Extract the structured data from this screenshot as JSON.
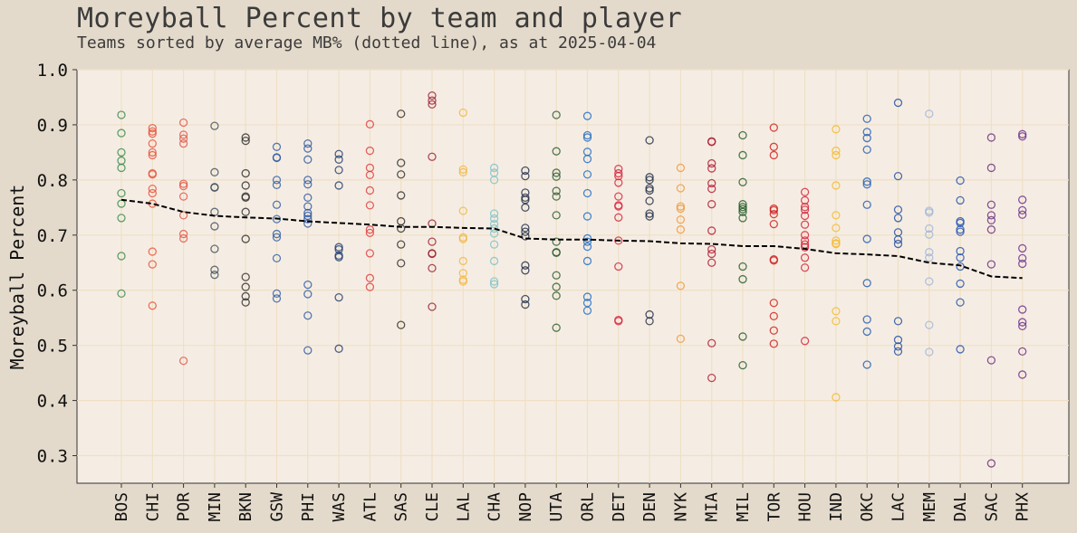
{
  "chart_data": {
    "type": "scatter",
    "title": "Moreyball Percent by team and player",
    "subtitle": "Teams sorted by average MB% (dotted line), as at 2025-04-04",
    "xlabel": "",
    "ylabel": "Moreyball Percent",
    "ylim": [
      0.25,
      1.0
    ],
    "yticks": [
      "0.3",
      "0.4",
      "0.5",
      "0.6",
      "0.7",
      "0.8",
      "0.9",
      "1.0"
    ],
    "grid": true,
    "categories": [
      "BOS",
      "CHI",
      "POR",
      "MIN",
      "BKN",
      "GSW",
      "PHI",
      "WAS",
      "ATL",
      "SAS",
      "CLE",
      "LAL",
      "CHA",
      "NOP",
      "UTA",
      "ORL",
      "DET",
      "DEN",
      "NYK",
      "MIA",
      "MIL",
      "TOR",
      "HOU",
      "IND",
      "OKC",
      "LAC",
      "MEM",
      "DAL",
      "SAC",
      "PHX"
    ],
    "colors": [
      "#3a8a48",
      "#e8503a",
      "#e05545",
      "#3d4f5e",
      "#2b2b2b",
      "#2c5aa8",
      "#2a55a0",
      "#1e3a6e",
      "#e03a3e",
      "#2b2b2b",
      "#9a1e35",
      "#f4b63e",
      "#7cc0c8",
      "#1e2a45",
      "#2a5a2e",
      "#1e6ac0",
      "#d8203c",
      "#1e2a45",
      "#f0963a",
      "#b01830",
      "#1e5a28",
      "#d01a1a",
      "#d4203a",
      "#f5b82a",
      "#1e5ab4",
      "#1e4aa0",
      "#a0b4d8",
      "#1e50b0",
      "#6a2c7a",
      "#6a2a90"
    ],
    "average": [
      0.764,
      0.757,
      0.742,
      0.735,
      0.732,
      0.73,
      0.725,
      0.722,
      0.719,
      0.715,
      0.715,
      0.713,
      0.712,
      0.694,
      0.692,
      0.692,
      0.69,
      0.689,
      0.685,
      0.684,
      0.68,
      0.68,
      0.675,
      0.667,
      0.665,
      0.662,
      0.65,
      0.645,
      0.625,
      0.622
    ],
    "points": [
      [
        0.918,
        0.885,
        0.85,
        0.835,
        0.822,
        0.776,
        0.757,
        0.731,
        0.662,
        0.594
      ],
      [
        0.894,
        0.888,
        0.884,
        0.866,
        0.85,
        0.845,
        0.812,
        0.81,
        0.784,
        0.776,
        0.757,
        0.67,
        0.647,
        0.572
      ],
      [
        0.904,
        0.882,
        0.875,
        0.866,
        0.793,
        0.789,
        0.77,
        0.736,
        0.702,
        0.694,
        0.472
      ],
      [
        0.898,
        0.814,
        0.787,
        0.786,
        0.742,
        0.716,
        0.675,
        0.637,
        0.628
      ],
      [
        0.877,
        0.871,
        0.812,
        0.79,
        0.77,
        0.768,
        0.742,
        0.693,
        0.624,
        0.606,
        0.589,
        0.578
      ],
      [
        0.86,
        0.841,
        0.84,
        0.8,
        0.791,
        0.755,
        0.729,
        0.702,
        0.696,
        0.658,
        0.594,
        0.585
      ],
      [
        0.866,
        0.857,
        0.837,
        0.8,
        0.792,
        0.768,
        0.752,
        0.74,
        0.735,
        0.729,
        0.721,
        0.61,
        0.593,
        0.554,
        0.491
      ],
      [
        0.847,
        0.837,
        0.818,
        0.79,
        0.678,
        0.674,
        0.663,
        0.66,
        0.587,
        0.494
      ],
      [
        0.901,
        0.853,
        0.822,
        0.809,
        0.781,
        0.754,
        0.71,
        0.704,
        0.667,
        0.622,
        0.606
      ],
      [
        0.92,
        0.831,
        0.81,
        0.772,
        0.725,
        0.712,
        0.683,
        0.649,
        0.537
      ],
      [
        0.953,
        0.944,
        0.937,
        0.842,
        0.721,
        0.688,
        0.667,
        0.666,
        0.64,
        0.57
      ],
      [
        0.922,
        0.819,
        0.814,
        0.744,
        0.696,
        0.693,
        0.653,
        0.631,
        0.619,
        0.616
      ],
      [
        0.822,
        0.813,
        0.8,
        0.739,
        0.73,
        0.72,
        0.712,
        0.703,
        0.683,
        0.653,
        0.616,
        0.611
      ],
      [
        0.817,
        0.807,
        0.777,
        0.768,
        0.764,
        0.75,
        0.713,
        0.706,
        0.698,
        0.645,
        0.636,
        0.584,
        0.574
      ],
      [
        0.918,
        0.852,
        0.813,
        0.806,
        0.78,
        0.77,
        0.736,
        0.688,
        0.669,
        0.668,
        0.627,
        0.606,
        0.59,
        0.532
      ],
      [
        0.916,
        0.881,
        0.877,
        0.851,
        0.838,
        0.81,
        0.776,
        0.734,
        0.694,
        0.688,
        0.679,
        0.653,
        0.588,
        0.577,
        0.563
      ],
      [
        0.82,
        0.812,
        0.807,
        0.795,
        0.77,
        0.754,
        0.752,
        0.732,
        0.69,
        0.643,
        0.546,
        0.544
      ],
      [
        0.872,
        0.805,
        0.8,
        0.785,
        0.781,
        0.762,
        0.739,
        0.734,
        0.556,
        0.544
      ],
      [
        0.822,
        0.785,
        0.752,
        0.748,
        0.728,
        0.71,
        0.608,
        0.512
      ],
      [
        0.87,
        0.869,
        0.83,
        0.821,
        0.794,
        0.784,
        0.756,
        0.708,
        0.674,
        0.666,
        0.65,
        0.504,
        0.441
      ],
      [
        0.881,
        0.845,
        0.796,
        0.756,
        0.751,
        0.747,
        0.742,
        0.731,
        0.643,
        0.62,
        0.516,
        0.464
      ],
      [
        0.895,
        0.86,
        0.845,
        0.748,
        0.745,
        0.738,
        0.72,
        0.656,
        0.654,
        0.577,
        0.553,
        0.527,
        0.503
      ],
      [
        0.778,
        0.763,
        0.751,
        0.746,
        0.735,
        0.719,
        0.7,
        0.69,
        0.683,
        0.678,
        0.659,
        0.641,
        0.508
      ],
      [
        0.892,
        0.853,
        0.845,
        0.79,
        0.736,
        0.713,
        0.69,
        0.685,
        0.684,
        0.562,
        0.544,
        0.406
      ],
      [
        0.911,
        0.887,
        0.876,
        0.855,
        0.797,
        0.792,
        0.755,
        0.693,
        0.613,
        0.547,
        0.525,
        0.465
      ],
      [
        0.94,
        0.807,
        0.746,
        0.731,
        0.705,
        0.692,
        0.684,
        0.544,
        0.51,
        0.498,
        0.489
      ],
      [
        0.92,
        0.744,
        0.741,
        0.712,
        0.701,
        0.669,
        0.659,
        0.616,
        0.537,
        0.488
      ],
      [
        0.799,
        0.763,
        0.725,
        0.722,
        0.71,
        0.706,
        0.671,
        0.659,
        0.643,
        0.612,
        0.578,
        0.493
      ],
      [
        0.877,
        0.822,
        0.755,
        0.736,
        0.727,
        0.71,
        0.647,
        0.473,
        0.286
      ],
      [
        0.883,
        0.879,
        0.764,
        0.745,
        0.737,
        0.676,
        0.658,
        0.648,
        0.565,
        0.542,
        0.535,
        0.489,
        0.447
      ]
    ]
  }
}
